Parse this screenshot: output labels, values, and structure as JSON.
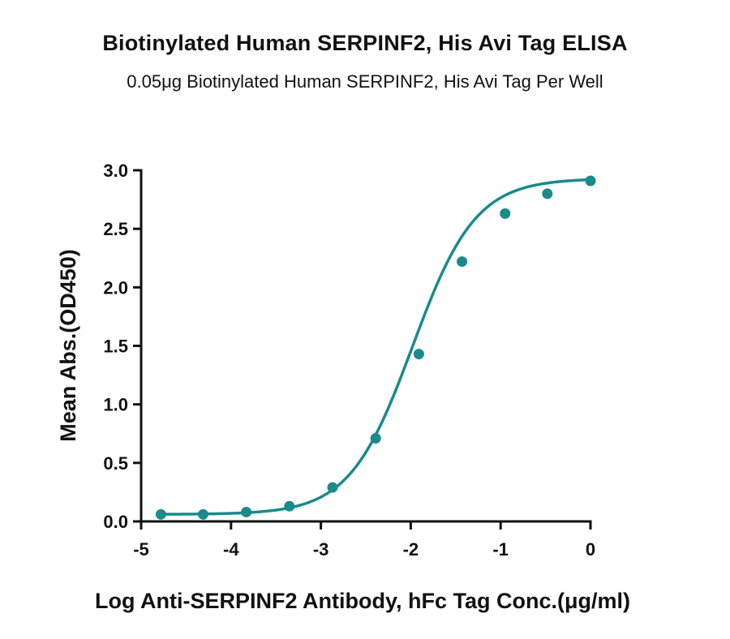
{
  "chart_data": {
    "type": "scatter",
    "title": "Biotinylated Human SERPINF2, His Avi Tag ELISA",
    "subtitle": "0.05μg Biotinylated Human SERPINF2, His Avi Tag Per Well",
    "xlabel": "Log Anti-SERPINF2 Antibody, hFc Tag Conc.(μg/ml)",
    "ylabel": "Mean Abs.(OD450)",
    "xlim": [
      -5,
      0
    ],
    "ylim": [
      0,
      3.0
    ],
    "x_ticks": [
      -5,
      -4,
      -3,
      -2,
      -1,
      0
    ],
    "x_tick_labels": [
      "-5",
      "-4",
      "-3",
      "-2",
      "-1",
      "0"
    ],
    "y_ticks": [
      0,
      0.5,
      1.0,
      1.5,
      2.0,
      2.5,
      3.0
    ],
    "y_tick_labels": [
      "0.0",
      "0.5",
      "1.0",
      "1.5",
      "2.0",
      "2.5",
      "3.0"
    ],
    "grid": false,
    "legend": "none",
    "color": "#1a8a8a",
    "series": [
      {
        "x": [
          -4.78,
          -4.31,
          -3.83,
          -3.35,
          -2.87,
          -2.39,
          -1.91,
          -1.43,
          -0.95,
          -0.48,
          0.0
        ],
        "y": [
          0.06,
          0.06,
          0.08,
          0.13,
          0.29,
          0.71,
          1.43,
          2.22,
          2.63,
          2.8,
          2.91
        ]
      }
    ],
    "fit_curve": {
      "type": "4PL",
      "bottom": 0.06,
      "top": 2.93,
      "log_ec50": -1.98,
      "hill_slope": 1.24
    }
  }
}
